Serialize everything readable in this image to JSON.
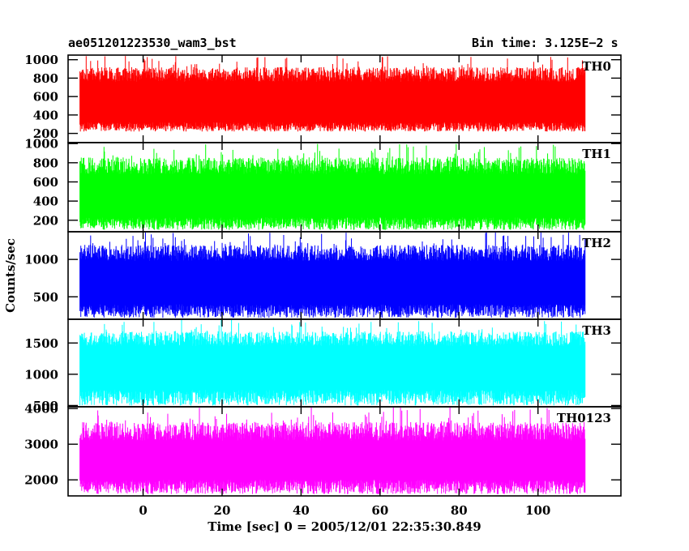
{
  "header": {
    "title": "ae051201223530_wam3_bst",
    "bin_time": "Bin time: 3.125E−2 s"
  },
  "chart_data": {
    "type": "line",
    "title": "ae051201223530_wam3_bst",
    "subtitle": "Bin time: 3.125E−2 s",
    "xlabel": "Time [sec] 0 = 2005/12/01 22:35:30.849",
    "ylabel": "Counts/sec",
    "xlim": [
      -19,
      121
    ],
    "xticks": [
      0,
      20,
      40,
      60,
      80,
      100
    ],
    "x_data_range": [
      -16,
      112
    ],
    "bin_time_s": 0.03125,
    "grid": false,
    "legend": "none",
    "panels": [
      {
        "name": "TH0",
        "color": "#ff0000",
        "ylim": [
          100,
          1050
        ],
        "yticks": [
          200,
          400,
          600,
          800,
          1000
        ],
        "approx_low": [
          220,
          320
        ],
        "approx_high": [
          760,
          1050
        ]
      },
      {
        "name": "TH1",
        "color": "#00ff00",
        "ylim": [
          80,
          1010
        ],
        "yticks": [
          200,
          400,
          600,
          800,
          1000
        ],
        "approx_low": [
          100,
          230
        ],
        "approx_high": [
          680,
          1000
        ]
      },
      {
        "name": "TH2",
        "color": "#0000ff",
        "ylim": [
          200,
          1370
        ],
        "yticks": [
          500,
          1000
        ],
        "approx_low": [
          220,
          400
        ],
        "approx_high": [
          980,
          1370
        ]
      },
      {
        "name": "TH3",
        "color": "#00ffff",
        "ylim": [
          480,
          1880
        ],
        "yticks": [
          500,
          1000,
          1500
        ],
        "approx_low": [
          500,
          750
        ],
        "approx_high": [
          1450,
          1880
        ]
      },
      {
        "name": "TH0123",
        "color": "#ff00ff",
        "ylim": [
          1550,
          4050
        ],
        "yticks": [
          2000,
          3000,
          4000
        ],
        "approx_low": [
          1600,
          2000
        ],
        "approx_high": [
          3100,
          4050
        ]
      }
    ]
  }
}
